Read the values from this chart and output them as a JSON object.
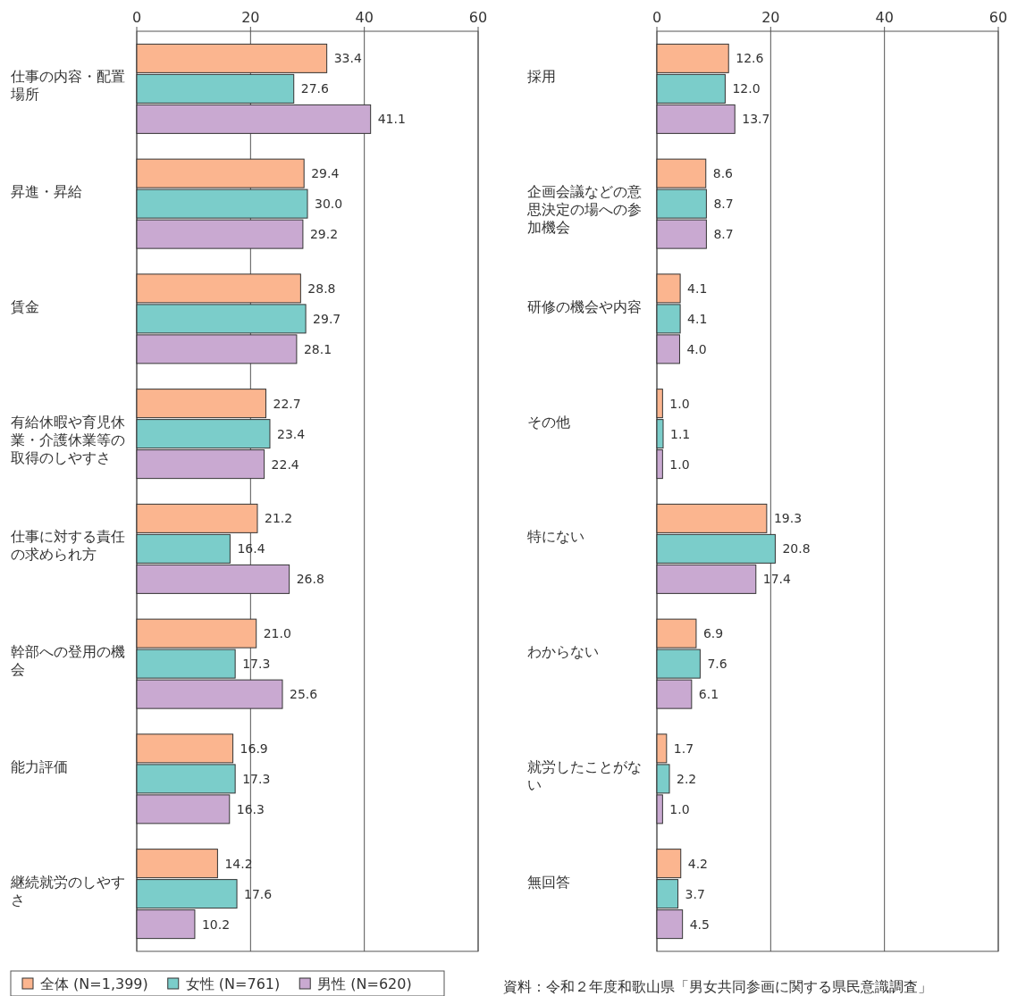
{
  "chart_data": [
    {
      "type": "bar",
      "orientation": "horizontal",
      "categories": [
        "仕事の内容・配置場所",
        "昇進・昇給",
        "賃金",
        "有給休暇や育児休業・介護休業等の取得のしやすさ",
        "仕事に対する責任の求められ方",
        "幹部への登用の機会",
        "能力評価",
        "継続就労のしやすさ"
      ],
      "series": [
        {
          "name": "全体 (N=1,399)",
          "color": "#fbb58f",
          "values": [
            33.4,
            29.4,
            28.8,
            22.7,
            21.2,
            21.0,
            16.9,
            14.2
          ],
          "value_labels": [
            "33.4",
            "29.4",
            "28.8",
            "22.7",
            "21.2",
            "21.0",
            "16.9",
            "14.2"
          ]
        },
        {
          "name": "女性 (N=761)",
          "color": "#7bcdca",
          "values": [
            27.6,
            30.0,
            29.7,
            23.4,
            16.4,
            17.3,
            17.3,
            17.6
          ],
          "value_labels": [
            "27.6",
            "30.0",
            "29.7",
            "23.4",
            "16.4",
            "17.3",
            "17.3",
            "17.6"
          ]
        },
        {
          "name": "男性 (N=620)",
          "color": "#c9a9d1",
          "values": [
            41.1,
            29.2,
            28.1,
            22.4,
            26.8,
            25.6,
            16.3,
            10.2
          ],
          "value_labels": [
            "41.1",
            "29.2",
            "28.1",
            "22.4",
            "26.8",
            "25.6",
            "16.3",
            "10.2"
          ]
        }
      ],
      "xlim": [
        0,
        60
      ],
      "xticks": [
        0,
        20,
        40,
        60
      ],
      "grid": "x",
      "legend": "bottom"
    },
    {
      "type": "bar",
      "orientation": "horizontal",
      "categories": [
        "採用",
        "企画会議などの意思決定の場への参加機会",
        "研修の機会や内容",
        "その他",
        "特にない",
        "わからない",
        "就労したことがない",
        "無回答"
      ],
      "series": [
        {
          "color": "#fbb58f",
          "values": [
            12.6,
            8.6,
            4.1,
            1.0,
            19.3,
            6.9,
            1.7,
            4.2
          ],
          "value_labels": [
            "12.6",
            "8.6",
            "4.1",
            "1.0",
            "19.3",
            "6.9",
            "1.7",
            "4.2"
          ]
        },
        {
          "color": "#7bcdca",
          "values": [
            12.0,
            8.7,
            4.1,
            1.1,
            20.8,
            7.6,
            2.2,
            3.7
          ],
          "value_labels": [
            "12.0",
            "8.7",
            "4.1",
            "1.1",
            "20.8",
            "7.6",
            "2.2",
            "3.7"
          ]
        },
        {
          "color": "#c9a9d1",
          "values": [
            13.7,
            8.7,
            4.0,
            1.0,
            17.4,
            6.1,
            1.0,
            4.5
          ],
          "value_labels": [
            "13.7",
            "8.7",
            "4.0",
            "1.0",
            "17.4",
            "6.1",
            "1.0",
            "4.5"
          ]
        }
      ],
      "xlim": [
        0,
        60
      ],
      "xticks": [
        0,
        20,
        40,
        60
      ],
      "grid": "x",
      "annotations": [
        "資料：令和２年度和歌山県「男女共同参画に関する県民意識調査」"
      ]
    }
  ]
}
